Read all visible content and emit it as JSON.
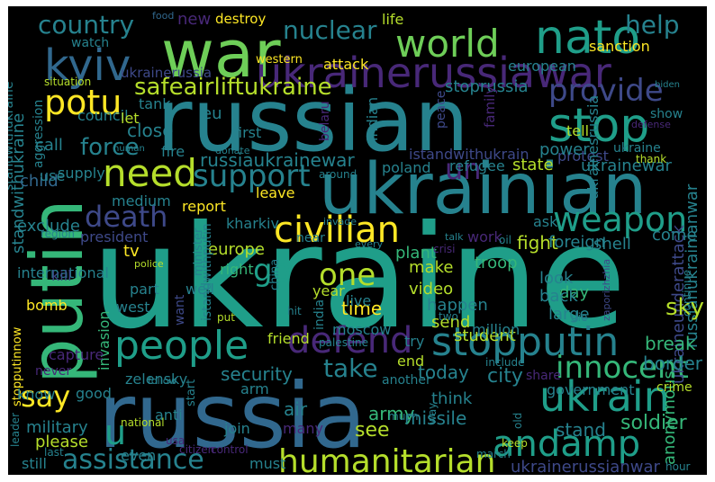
{
  "background": "#000000",
  "palette": [
    "#440154",
    "#482878",
    "#3e4989",
    "#31688e",
    "#26828e",
    "#1f9e89",
    "#35b779",
    "#6ece58",
    "#b5de2b",
    "#fde725"
  ],
  "words": [
    {
      "id": "ukraine",
      "text": "ukraine",
      "color": "#1f9e89"
    },
    {
      "id": "russian",
      "text": "russian",
      "color": "#26828e"
    },
    {
      "id": "russia",
      "text": "russia",
      "color": "#31688e"
    },
    {
      "id": "ukrainian",
      "text": "ukrainian",
      "color": "#26828e"
    },
    {
      "id": "putin",
      "text": "putin",
      "color": "#35b779"
    },
    {
      "id": "war",
      "text": "war",
      "color": "#6ece58"
    },
    {
      "id": "ukrainerussiawar",
      "text": "ukrainerussiawar",
      "color": "#482878"
    },
    {
      "id": "nato",
      "text": "nato",
      "color": "#1f9e89"
    },
    {
      "id": "world",
      "text": "world",
      "color": "#6ece58"
    },
    {
      "id": "kyiv",
      "text": "kyiv",
      "color": "#31688e"
    },
    {
      "id": "country",
      "text": "country",
      "color": "#26828e"
    },
    {
      "id": "help",
      "text": "help",
      "color": "#26828e"
    },
    {
      "id": "nuclear",
      "text": "nuclear",
      "color": "#26828e"
    },
    {
      "id": "stop",
      "text": "stop",
      "color": "#1f9e89"
    },
    {
      "id": "provide",
      "text": "provide",
      "color": "#3e4989"
    },
    {
      "id": "potu",
      "text": "potu",
      "color": "#fde725"
    },
    {
      "id": "safeairliftukraine",
      "text": "safeairliftukraine",
      "color": "#b5de2b"
    },
    {
      "id": "need",
      "text": "need",
      "color": "#b5de2b"
    },
    {
      "id": "force",
      "text": "force",
      "color": "#26828e"
    },
    {
      "id": "support",
      "text": "support",
      "color": "#26828e"
    },
    {
      "id": "civilian",
      "text": "civilian",
      "color": "#fde725"
    },
    {
      "id": "weapon",
      "text": "weapon",
      "color": "#1f9e89"
    },
    {
      "id": "death",
      "text": "death",
      "color": "#3e4989"
    },
    {
      "id": "people",
      "text": "people",
      "color": "#1f9e89"
    },
    {
      "id": "defend",
      "text": "defend",
      "color": "#482878"
    },
    {
      "id": "stopputin",
      "text": "stopputin",
      "color": "#26828e"
    },
    {
      "id": "innocent",
      "text": "innocent",
      "color": "#35b779"
    },
    {
      "id": "take",
      "text": "take",
      "color": "#26828e"
    },
    {
      "id": "say",
      "text": "say",
      "color": "#fde725"
    },
    {
      "id": "ukrain",
      "text": "ukrain",
      "color": "#1f9e89"
    },
    {
      "id": "andamp",
      "text": "andamp",
      "color": "#1f9e89"
    },
    {
      "id": "humanitarian",
      "text": "humanitarian",
      "color": "#b5de2b"
    },
    {
      "id": "assistance",
      "text": "assistance",
      "color": "#26828e"
    },
    {
      "id": "go",
      "text": "go",
      "color": "#1f9e89"
    },
    {
      "id": "one",
      "text": "one",
      "color": "#b5de2b"
    },
    {
      "id": "u",
      "text": "u",
      "color": "#1f9e89"
    },
    {
      "id": "un",
      "text": "un",
      "color": "#482878"
    },
    {
      "id": "russiaukrainewar",
      "text": "russiaukrainewar",
      "color": "#26828e"
    },
    {
      "id": "stoprussia",
      "text": "stoprussia",
      "color": "#26828e"
    },
    {
      "id": "istandwithukrain",
      "text": "istandwithukrain",
      "color": "#3e4989"
    },
    {
      "id": "russianukrainianwar",
      "text": "russianukrainianwar",
      "color": "#26828e"
    },
    {
      "id": "ukraineunderattack",
      "text": "ukraineunderattack",
      "color": "#3e4989"
    },
    {
      "id": "ukrainerussianwar",
      "text": "ukrainerussianwar",
      "color": "#3e4989"
    },
    {
      "id": "standwithukraine",
      "text": "standwithukraine",
      "color": "#26828e"
    },
    {
      "id": "ukrainerussia",
      "text": "ukrainerussia",
      "color": "#3e4989"
    },
    {
      "id": "stopputinnow",
      "text": "stopputinnow",
      "color": "#fde725"
    },
    {
      "id": "aggression",
      "text": "aggression",
      "color": "#26828e"
    },
    {
      "id": "international",
      "text": "international",
      "color": "#26828e"
    },
    {
      "id": "military",
      "text": "military",
      "color": "#26828e"
    },
    {
      "id": "security",
      "text": "security",
      "color": "#26828e"
    },
    {
      "id": "today",
      "text": "today",
      "color": "#26828e"
    },
    {
      "id": "city",
      "text": "city",
      "color": "#26828e"
    },
    {
      "id": "soldier",
      "text": "soldier",
      "color": "#35b779"
    },
    {
      "id": "stand",
      "text": "stand",
      "color": "#26828e"
    },
    {
      "id": "see",
      "text": "see",
      "color": "#b5de2b"
    },
    {
      "id": "please",
      "text": "please",
      "color": "#b5de2b"
    },
    {
      "id": "bomb",
      "text": "bomb",
      "color": "#fde725"
    },
    {
      "id": "kill",
      "text": "kill",
      "color": "#3e4989"
    },
    {
      "id": "president",
      "text": "president",
      "color": "#3e4989"
    },
    {
      "id": "exclude",
      "text": "exclude",
      "color": "#26828e"
    },
    {
      "id": "child",
      "text": "child",
      "color": "#31688e"
    },
    {
      "id": "use",
      "text": "use",
      "color": "#26828e"
    },
    {
      "id": "call",
      "text": "call",
      "color": "#26828e"
    },
    {
      "id": "council",
      "text": "council",
      "color": "#26828e"
    },
    {
      "id": "close",
      "text": "close",
      "color": "#26828e"
    },
    {
      "id": "report",
      "text": "report",
      "color": "#fde725"
    },
    {
      "id": "leave",
      "text": "leave",
      "color": "#fde725"
    },
    {
      "id": "kharkiv",
      "text": "kharkiv",
      "color": "#26828e"
    },
    {
      "id": "europe",
      "text": "europe",
      "color": "#b5de2b"
    },
    {
      "id": "right",
      "text": "right",
      "color": "#35b779"
    },
    {
      "id": "time",
      "text": "time",
      "color": "#fde725"
    },
    {
      "id": "fight",
      "text": "fight",
      "color": "#b5de2b"
    },
    {
      "id": "make",
      "text": "make",
      "color": "#b5de2b"
    },
    {
      "id": "video",
      "text": "video",
      "color": "#b5de2b"
    },
    {
      "id": "troop",
      "text": "troop",
      "color": "#35b779"
    },
    {
      "id": "plant",
      "text": "plant",
      "color": "#35b779"
    },
    {
      "id": "happen",
      "text": "happen",
      "color": "#26828e"
    },
    {
      "id": "send",
      "text": "send",
      "color": "#b5de2b"
    },
    {
      "id": "student",
      "text": "student",
      "color": "#b5de2b"
    },
    {
      "id": "day",
      "text": "day",
      "color": "#35b779"
    },
    {
      "id": "sky",
      "text": "sky",
      "color": "#b5de2b"
    },
    {
      "id": "back",
      "text": "back",
      "color": "#26828e"
    },
    {
      "id": "large",
      "text": "large",
      "color": "#26828e"
    },
    {
      "id": "look",
      "text": "look",
      "color": "#26828e"
    },
    {
      "id": "break",
      "text": "break",
      "color": "#35b779"
    },
    {
      "id": "border",
      "text": "border",
      "color": "#26828e"
    },
    {
      "id": "army",
      "text": "army",
      "color": "#35b779"
    },
    {
      "id": "missile",
      "text": "missile",
      "color": "#26828e"
    },
    {
      "id": "air",
      "text": "air",
      "color": "#26828e"
    },
    {
      "id": "think",
      "text": "think",
      "color": "#26828e"
    },
    {
      "id": "government",
      "text": "government",
      "color": "#26828e"
    },
    {
      "id": "anonymous",
      "text": "anonymous",
      "color": "#35b779"
    },
    {
      "id": "zelensky",
      "text": "zelensky",
      "color": "#26828e"
    },
    {
      "id": "invasion",
      "text": "invasion",
      "color": "#35b779"
    },
    {
      "id": "west",
      "text": "west",
      "color": "#26828e"
    },
    {
      "id": "capture",
      "text": "capture",
      "color": "#482878"
    },
    {
      "id": "friend",
      "text": "friend",
      "color": "#b5de2b"
    },
    {
      "id": "moscow",
      "text": "moscow",
      "color": "#26828e"
    },
    {
      "id": "end",
      "text": "end",
      "color": "#b5de2b"
    },
    {
      "id": "try",
      "text": "try",
      "color": "#26828e"
    },
    {
      "id": "million",
      "text": "million",
      "color": "#26828e"
    },
    {
      "id": "know",
      "text": "know",
      "color": "#26828e"
    },
    {
      "id": "good",
      "text": "good",
      "color": "#26828e"
    },
    {
      "id": "arm",
      "text": "arm",
      "color": "#26828e"
    },
    {
      "id": "anti",
      "text": "anti",
      "color": "#26828e"
    },
    {
      "id": "join",
      "text": "join",
      "color": "#26828e"
    },
    {
      "id": "many",
      "text": "many",
      "color": "#482878"
    },
    {
      "id": "must",
      "text": "must",
      "color": "#26828e"
    },
    {
      "id": "even",
      "text": "even",
      "color": "#26828e"
    },
    {
      "id": "still",
      "text": "still",
      "color": "#26828e"
    },
    {
      "id": "attack",
      "text": "attack",
      "color": "#fde725"
    },
    {
      "id": "western",
      "text": "western",
      "color": "#fde725"
    },
    {
      "id": "destroy",
      "text": "destroy",
      "color": "#fde725"
    },
    {
      "id": "new",
      "text": "new",
      "color": "#482878"
    },
    {
      "id": "life",
      "text": "life",
      "color": "#b5de2b"
    },
    {
      "id": "european",
      "text": "european",
      "color": "#26828e"
    },
    {
      "id": "sanction",
      "text": "sanction",
      "color": "#fde725"
    },
    {
      "id": "watch",
      "text": "watch",
      "color": "#26828e"
    },
    {
      "id": "food",
      "text": "food",
      "color": "#31688e"
    },
    {
      "id": "protest",
      "text": "protest",
      "color": "#3e4989"
    },
    {
      "id": "peace",
      "text": "peace",
      "color": "#3e4989"
    },
    {
      "id": "show",
      "text": "show",
      "color": "#26828e"
    },
    {
      "id": "tell",
      "text": "tell",
      "color": "#b5de2b"
    },
    {
      "id": "power",
      "text": "power",
      "color": "#26828e"
    },
    {
      "id": "state",
      "text": "state",
      "color": "#b5de2b"
    },
    {
      "id": "refugee",
      "text": "refugee",
      "color": "#26828e"
    },
    {
      "id": "poland",
      "text": "poland",
      "color": "#26828e"
    },
    {
      "id": "ukrainewar",
      "text": "ukrainewar",
      "color": "#26828e"
    },
    {
      "id": "ask",
      "text": "ask",
      "color": "#26828e"
    },
    {
      "id": "foreign",
      "text": "foreign",
      "color": "#26828e"
    },
    {
      "id": "shell",
      "text": "shell",
      "color": "#26828e"
    },
    {
      "id": "come",
      "text": "come",
      "color": "#26828e"
    },
    {
      "id": "work",
      "text": "work",
      "color": "#482878"
    },
    {
      "id": "tank",
      "text": "tank",
      "color": "#26828e"
    },
    {
      "id": "let",
      "text": "let",
      "color": "#b5de2b"
    },
    {
      "id": "eu",
      "text": "eu",
      "color": "#26828e"
    },
    {
      "id": "first",
      "text": "first",
      "color": "#26828e"
    },
    {
      "id": "fire",
      "text": "fire",
      "color": "#26828e"
    },
    {
      "id": "human",
      "text": "human",
      "color": "#26828e"
    },
    {
      "id": "donate",
      "text": "donate",
      "color": "#26828e"
    },
    {
      "id": "supply",
      "text": "supply",
      "color": "#26828e"
    },
    {
      "id": "medium",
      "text": "medium",
      "color": "#26828e"
    },
    {
      "id": "belaru",
      "text": "belaru",
      "color": "#482878"
    },
    {
      "id": "indian",
      "text": "indian",
      "color": "#26828e"
    },
    {
      "id": "family",
      "text": "family",
      "color": "#482878"
    },
    {
      "id": "ukraine_small",
      "text": "ukraine",
      "color": "#26828e"
    },
    {
      "id": "thank",
      "text": "thank",
      "color": "#b5de2b"
    },
    {
      "id": "defense",
      "text": "defense",
      "color": "#482878"
    },
    {
      "id": "biden",
      "text": "biden",
      "color": "#26828e"
    },
    {
      "id": "ukrainesrussia",
      "text": "ukrainesrussia",
      "color": "#26828e"
    },
    {
      "id": "around",
      "text": "around",
      "color": "#26828e"
    },
    {
      "id": "situation",
      "text": "situation",
      "color": "#b5de2b"
    },
    {
      "id": "standwithukrainee",
      "text": "standwithukraine",
      "color": "#26828e"
    },
    {
      "id": "tv",
      "text": "tv",
      "color": "#fde725"
    },
    {
      "id": "police",
      "text": "police",
      "color": "#b5de2b"
    },
    {
      "id": "part",
      "text": "part",
      "color": "#26828e"
    },
    {
      "id": "well",
      "text": "well",
      "color": "#26828e"
    },
    {
      "id": "want",
      "text": "want",
      "color": "#3e4989"
    },
    {
      "id": "minister",
      "text": "minister",
      "color": "#26828e"
    },
    {
      "id": "istandwithputin",
      "text": "istandwithputin",
      "color": "#26828e"
    },
    {
      "id": "china",
      "text": "china",
      "color": "#26828e"
    },
    {
      "id": "near",
      "text": "near",
      "color": "#26828e"
    },
    {
      "id": "invade",
      "text": "invade",
      "color": "#26828e"
    },
    {
      "id": "every",
      "text": "every",
      "color": "#26828e"
    },
    {
      "id": "crisi",
      "text": "crisi",
      "color": "#482878"
    },
    {
      "id": "talk",
      "text": "talk",
      "color": "#26828e"
    },
    {
      "id": "oil",
      "text": "oil",
      "color": "#26828e"
    },
    {
      "id": "year",
      "text": "year",
      "color": "#b5de2b"
    },
    {
      "id": "live",
      "text": "live",
      "color": "#26828e"
    },
    {
      "id": "india",
      "text": "india",
      "color": "#26828e"
    },
    {
      "id": "hit",
      "text": "hit",
      "color": "#26828e"
    },
    {
      "id": "put",
      "text": "put",
      "color": "#b5de2b"
    },
    {
      "id": "palestine",
      "text": "palestine",
      "color": "#26828e"
    },
    {
      "id": "two",
      "text": "two",
      "color": "#26828e"
    },
    {
      "id": "die",
      "text": "die",
      "color": "#26828e"
    },
    {
      "id": "zaporizhzhia",
      "text": "zaporizhzhia",
      "color": "#3e4989"
    },
    {
      "id": "continue",
      "text": "continue",
      "color": "#26828e"
    },
    {
      "id": "region",
      "text": "region",
      "color": "#26828e"
    },
    {
      "id": "never",
      "text": "never",
      "color": "#482878"
    },
    {
      "id": "another",
      "text": "another",
      "color": "#26828e"
    },
    {
      "id": "include",
      "text": "include",
      "color": "#26828e"
    },
    {
      "id": "share",
      "text": "share",
      "color": "#482878"
    },
    {
      "id": "crime",
      "text": "crime",
      "color": "#b5de2b"
    },
    {
      "id": "follow",
      "text": "follow",
      "color": "#26828e"
    },
    {
      "id": "start",
      "text": "start",
      "color": "#26828e"
    },
    {
      "id": "national",
      "text": "national",
      "color": "#b5de2b"
    },
    {
      "id": "leader",
      "text": "leader",
      "color": "#26828e"
    },
    {
      "id": "last",
      "text": "last",
      "color": "#26828e"
    },
    {
      "id": "usa",
      "text": "usa",
      "color": "#482878"
    },
    {
      "id": "citizen",
      "text": "citizen",
      "color": "#482878"
    },
    {
      "id": "control",
      "text": "control",
      "color": "#482878"
    },
    {
      "id": "much",
      "text": "much",
      "color": "#26828e"
    },
    {
      "id": "way",
      "text": "way",
      "color": "#26828e"
    },
    {
      "id": "old",
      "text": "old",
      "color": "#26828e"
    },
    {
      "id": "keep",
      "text": "keep",
      "color": "#b5de2b"
    },
    {
      "id": "march",
      "text": "march",
      "color": "#26828e"
    },
    {
      "id": "hour",
      "text": "hour",
      "color": "#26828e"
    }
  ]
}
